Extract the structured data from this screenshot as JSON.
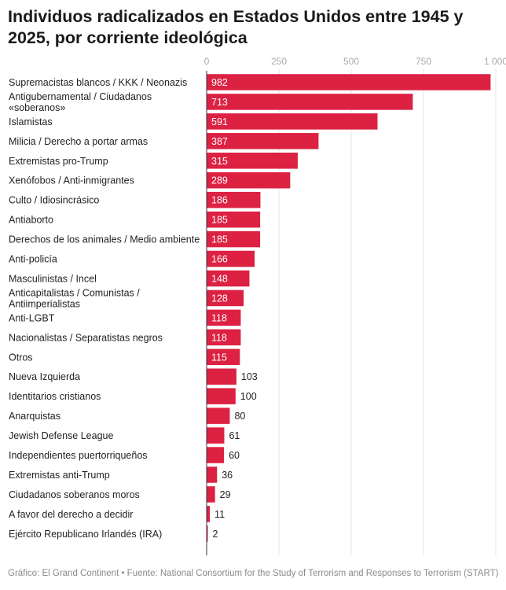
{
  "title": "Individuos radicalizados en Estados Unidos entre 1945 y 2025, por corriente ideológica",
  "footer": "Gráfico: El Grand Continent • Fuente: National Consortium for the Study of Terrorism and Responses to Terrorism (START)",
  "colors": {
    "bar": "#dc2143",
    "grid": "#e4e4e4",
    "axis": "#333333"
  },
  "chart_data": {
    "type": "bar",
    "orientation": "horizontal",
    "title": "Individuos radicalizados en Estados Unidos entre 1945 y 2025, por corriente ideológica",
    "xlim": [
      0,
      1000
    ],
    "grid": true,
    "tick_values": [
      0,
      250,
      500,
      750,
      1000
    ],
    "tick_labels": [
      "0",
      "250",
      "500",
      "750",
      "1 000"
    ],
    "categories": [
      [
        "Supremacistas blancos / KKK / Neonazis"
      ],
      [
        "Antigubernamental / Ciudadanos",
        "«soberanos»"
      ],
      [
        "Islamistas"
      ],
      [
        "Milicia / Derecho a portar armas"
      ],
      [
        "Extremistas pro-Trump"
      ],
      [
        "Xenófobos / Anti-inmigrantes"
      ],
      [
        "Culto / Idiosincrásico"
      ],
      [
        "Antiaborto"
      ],
      [
        "Derechos de los animales / Medio ambiente"
      ],
      [
        "Anti-policía"
      ],
      [
        "Masculinistas / Incel"
      ],
      [
        "Anticapitalistas / Comunistas /",
        "Antiimperialistas"
      ],
      [
        "Anti-LGBT"
      ],
      [
        "Nacionalistas / Separatistas negros"
      ],
      [
        "Otros"
      ],
      [
        "Nueva Izquierda"
      ],
      [
        "Identitarios cristianos"
      ],
      [
        "Anarquistas"
      ],
      [
        "Jewish Defense League"
      ],
      [
        "Independientes puertorriqueños"
      ],
      [
        "Extremistas anti-Trump"
      ],
      [
        "Ciudadanos soberanos moros"
      ],
      [
        "A favor del derecho a decidir"
      ],
      [
        "Ejército Republicano Irlandés (IRA)"
      ]
    ],
    "values": [
      982,
      713,
      591,
      387,
      315,
      289,
      186,
      185,
      185,
      166,
      148,
      128,
      118,
      118,
      115,
      103,
      100,
      80,
      61,
      60,
      36,
      29,
      11,
      2
    ]
  }
}
